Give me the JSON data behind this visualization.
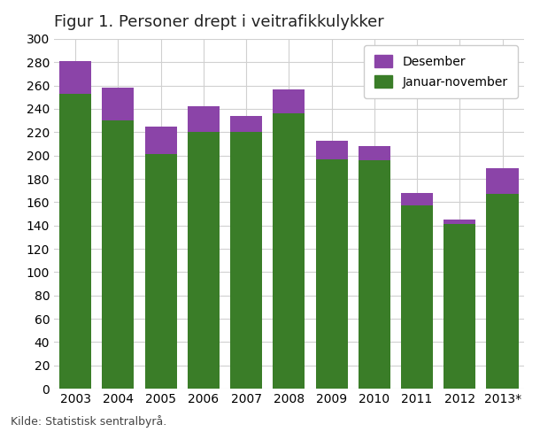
{
  "title": "Figur 1. Personer drept i veitrafikkulykker",
  "categories": [
    "2003",
    "2004",
    "2005",
    "2006",
    "2007",
    "2008",
    "2009",
    "2010",
    "2011",
    "2012",
    "2013*"
  ],
  "januar_november": [
    253,
    230,
    201,
    220,
    220,
    236,
    197,
    196,
    157,
    141,
    167
  ],
  "desember": [
    28,
    28,
    24,
    22,
    14,
    21,
    16,
    12,
    11,
    4,
    22
  ],
  "color_jan_nov": "#3a7d28",
  "color_desember": "#8b44a8",
  "ylim": [
    0,
    300
  ],
  "yticks": [
    0,
    20,
    40,
    60,
    80,
    100,
    120,
    140,
    160,
    180,
    200,
    220,
    240,
    260,
    280,
    300
  ],
  "legend_labels": [
    "Desember",
    "Januar-november"
  ],
  "source": "Kilde: Statistisk sentralbyrå.",
  "background_color": "#ffffff",
  "grid_color": "#d0d0d0",
  "title_fontsize": 13,
  "tick_fontsize": 10,
  "legend_fontsize": 10,
  "source_fontsize": 9,
  "bar_width": 0.75
}
